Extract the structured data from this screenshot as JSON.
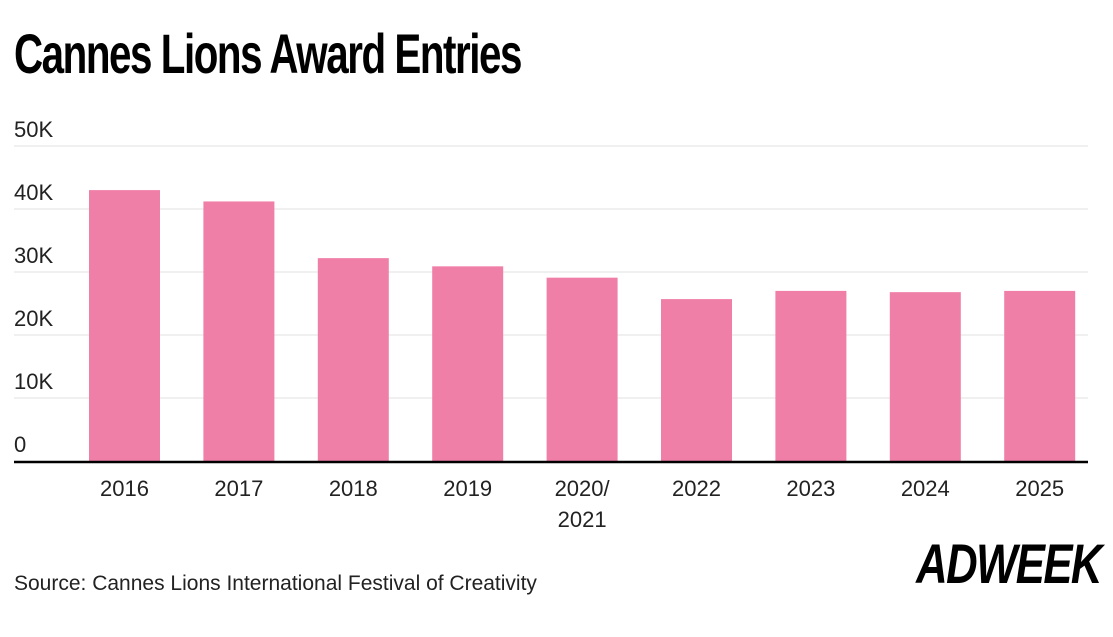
{
  "title": "Cannes Lions Award Entries",
  "source": "Source: Cannes Lions International Festival of Creativity",
  "logo": "ADWEEK",
  "colors": {
    "bar": "#F07FA8",
    "axis": "#000000",
    "grid": "#E2E2E2",
    "text": "#222222"
  },
  "chart_data": {
    "type": "bar",
    "title": "Cannes Lions Award Entries",
    "xlabel": "",
    "ylabel": "",
    "ylim": [
      0,
      50000
    ],
    "grid": true,
    "categories": [
      "2016",
      "2017",
      "2018",
      "2019",
      "2020/\n2021",
      "2022",
      "2023",
      "2024",
      "2025"
    ],
    "values": [
      43000,
      41200,
      32200,
      30900,
      29100,
      25700,
      27000,
      26800,
      27000
    ],
    "y_ticks": [
      0,
      10000,
      20000,
      30000,
      40000,
      50000
    ],
    "y_tick_labels": [
      "0",
      "10K",
      "20K",
      "30K",
      "40K",
      "50K"
    ]
  }
}
